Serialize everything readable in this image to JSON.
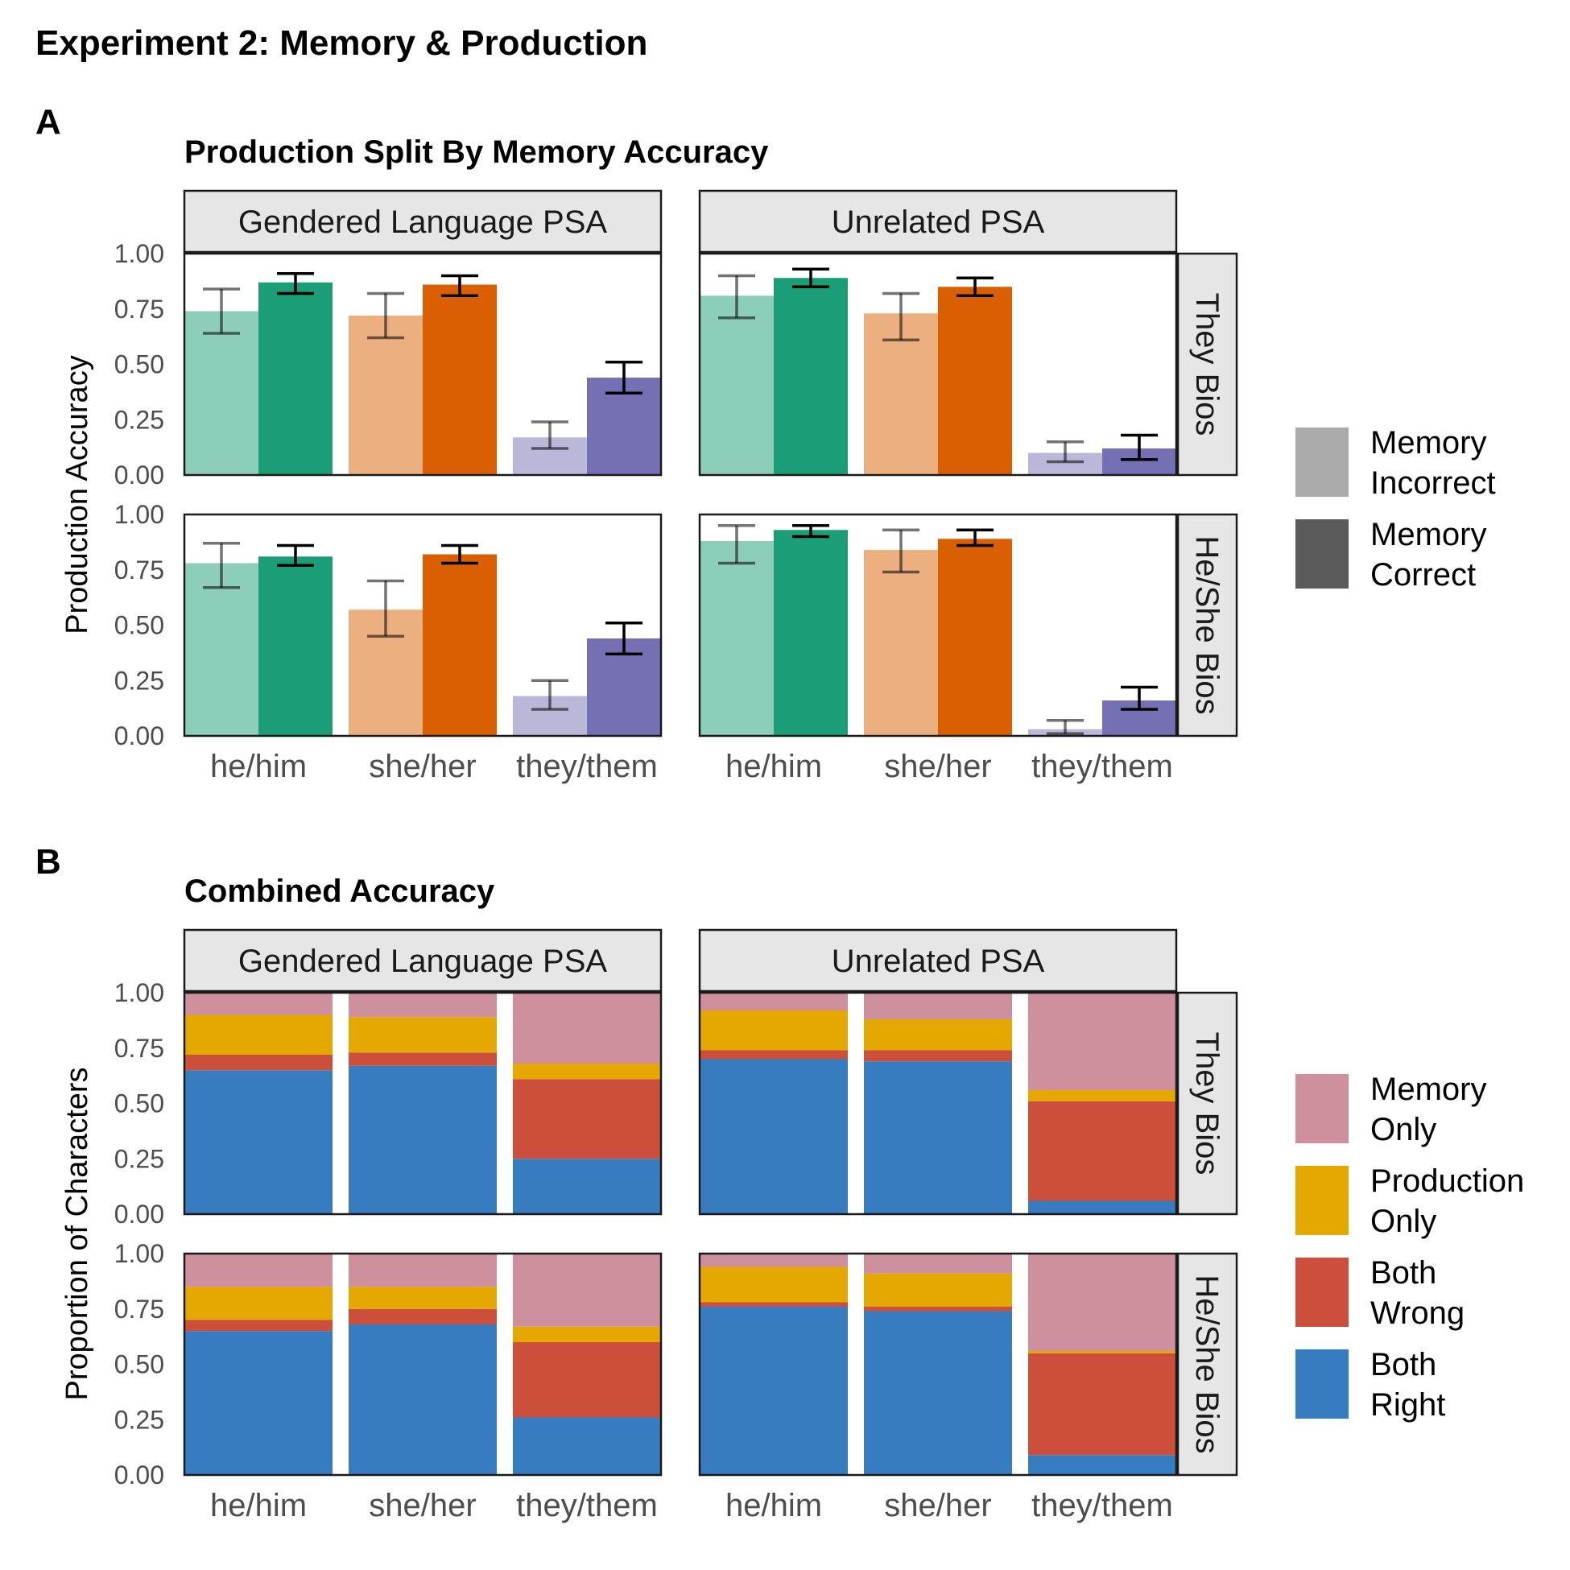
{
  "figure": {
    "title": "Experiment 2: Memory & Production",
    "panel_a_letter": "A",
    "panel_b_letter": "B",
    "panel_a_title": "Production Split By Memory Accuracy",
    "panel_b_title": "Combined Accuracy"
  },
  "colors": {
    "he_him": "#1b9e77",
    "she_her": "#d95f02",
    "they_them": "#7570b3",
    "memory_only": "#ce909c",
    "production_only": "#e5a800",
    "both_wrong": "#cc4f3c",
    "both_right": "#377bc1"
  },
  "chart_data": [
    {
      "type": "bar",
      "title": "Production Split By Memory Accuracy",
      "ylabel": "Production Accuracy",
      "xlabel": "",
      "ylim": [
        0,
        1
      ],
      "yticks": [
        "0.00",
        "0.25",
        "0.50",
        "0.75",
        "1.00"
      ],
      "categories": [
        "he/him",
        "she/her",
        "they/them"
      ],
      "columns": [
        "Gendered Language PSA",
        "Unrelated PSA"
      ],
      "rows": [
        "They Bios",
        "He/She Bios"
      ],
      "legend": {
        "position": "right",
        "entries": [
          "Memory Incorrect",
          "Memory Correct"
        ]
      },
      "panels": [
        {
          "column": "Gendered Language PSA",
          "row": "They Bios",
          "series": [
            {
              "name": "Memory Incorrect",
              "values": [
                0.74,
                0.72,
                0.17
              ],
              "lower": [
                0.64,
                0.62,
                0.12
              ],
              "upper": [
                0.84,
                0.82,
                0.24
              ]
            },
            {
              "name": "Memory Correct",
              "values": [
                0.87,
                0.86,
                0.44
              ],
              "lower": [
                0.82,
                0.81,
                0.37
              ],
              "upper": [
                0.91,
                0.9,
                0.51
              ]
            }
          ]
        },
        {
          "column": "Unrelated PSA",
          "row": "They Bios",
          "series": [
            {
              "name": "Memory Incorrect",
              "values": [
                0.81,
                0.73,
                0.1
              ],
              "lower": [
                0.71,
                0.61,
                0.06
              ],
              "upper": [
                0.9,
                0.82,
                0.15
              ]
            },
            {
              "name": "Memory Correct",
              "values": [
                0.89,
                0.85,
                0.12
              ],
              "lower": [
                0.85,
                0.81,
                0.07
              ],
              "upper": [
                0.93,
                0.89,
                0.18
              ]
            }
          ]
        },
        {
          "column": "Gendered Language PSA",
          "row": "He/She Bios",
          "series": [
            {
              "name": "Memory Incorrect",
              "values": [
                0.78,
                0.57,
                0.18
              ],
              "lower": [
                0.67,
                0.45,
                0.12
              ],
              "upper": [
                0.87,
                0.7,
                0.25
              ]
            },
            {
              "name": "Memory Correct",
              "values": [
                0.81,
                0.82,
                0.44
              ],
              "lower": [
                0.77,
                0.78,
                0.37
              ],
              "upper": [
                0.86,
                0.86,
                0.51
              ]
            }
          ]
        },
        {
          "column": "Unrelated PSA",
          "row": "He/She Bios",
          "series": [
            {
              "name": "Memory Incorrect",
              "values": [
                0.88,
                0.84,
                0.03
              ],
              "lower": [
                0.78,
                0.74,
                0.01
              ],
              "upper": [
                0.95,
                0.93,
                0.07
              ]
            },
            {
              "name": "Memory Correct",
              "values": [
                0.93,
                0.89,
                0.16
              ],
              "lower": [
                0.9,
                0.86,
                0.12
              ],
              "upper": [
                0.95,
                0.93,
                0.22
              ]
            }
          ]
        }
      ]
    },
    {
      "type": "bar",
      "stacked": true,
      "title": "Combined Accuracy",
      "ylabel": "Proportion of Characters",
      "xlabel": "",
      "ylim": [
        0,
        1
      ],
      "yticks": [
        "0.00",
        "0.25",
        "0.50",
        "0.75",
        "1.00"
      ],
      "categories": [
        "he/him",
        "she/her",
        "they/them"
      ],
      "columns": [
        "Gendered Language PSA",
        "Unrelated PSA"
      ],
      "rows": [
        "They Bios",
        "He/She Bios"
      ],
      "legend": {
        "position": "right",
        "entries": [
          "Memory Only",
          "Production Only",
          "Both Wrong",
          "Both Right"
        ]
      },
      "panels": [
        {
          "column": "Gendered Language PSA",
          "row": "They Bios",
          "series": [
            {
              "name": "Both Right",
              "values": [
                0.65,
                0.67,
                0.25
              ]
            },
            {
              "name": "Both Wrong",
              "values": [
                0.07,
                0.06,
                0.36
              ]
            },
            {
              "name": "Production Only",
              "values": [
                0.18,
                0.16,
                0.07
              ]
            },
            {
              "name": "Memory Only",
              "values": [
                0.1,
                0.11,
                0.32
              ]
            }
          ]
        },
        {
          "column": "Unrelated PSA",
          "row": "They Bios",
          "series": [
            {
              "name": "Both Right",
              "values": [
                0.7,
                0.69,
                0.06
              ]
            },
            {
              "name": "Both Wrong",
              "values": [
                0.04,
                0.05,
                0.45
              ]
            },
            {
              "name": "Production Only",
              "values": [
                0.18,
                0.14,
                0.05
              ]
            },
            {
              "name": "Memory Only",
              "values": [
                0.08,
                0.12,
                0.44
              ]
            }
          ]
        },
        {
          "column": "Gendered Language PSA",
          "row": "He/She Bios",
          "series": [
            {
              "name": "Both Right",
              "values": [
                0.65,
                0.68,
                0.26
              ]
            },
            {
              "name": "Both Wrong",
              "values": [
                0.05,
                0.07,
                0.34
              ]
            },
            {
              "name": "Production Only",
              "values": [
                0.15,
                0.1,
                0.07
              ]
            },
            {
              "name": "Memory Only",
              "values": [
                0.15,
                0.15,
                0.33
              ]
            }
          ]
        },
        {
          "column": "Unrelated PSA",
          "row": "He/She Bios",
          "series": [
            {
              "name": "Both Right",
              "values": [
                0.76,
                0.74,
                0.09
              ]
            },
            {
              "name": "Both Wrong",
              "values": [
                0.02,
                0.02,
                0.46
              ]
            },
            {
              "name": "Production Only",
              "values": [
                0.16,
                0.15,
                0.01
              ]
            },
            {
              "name": "Memory Only",
              "values": [
                0.06,
                0.09,
                0.44
              ]
            }
          ]
        }
      ]
    }
  ],
  "legend_a": [
    {
      "line1": "Memory",
      "line2": "Incorrect",
      "color": "#aaaaaa"
    },
    {
      "line1": "Memory",
      "line2": "Correct",
      "color": "#5a5a5a"
    }
  ],
  "legend_b": [
    {
      "line1": "Memory",
      "line2": "Only",
      "color": "#ce909c"
    },
    {
      "line1": "Production",
      "line2": "Only",
      "color": "#e5a800"
    },
    {
      "line1": "Both",
      "line2": "Wrong",
      "color": "#cc4f3c"
    },
    {
      "line1": "Both",
      "line2": "Right",
      "color": "#377bc1"
    }
  ]
}
